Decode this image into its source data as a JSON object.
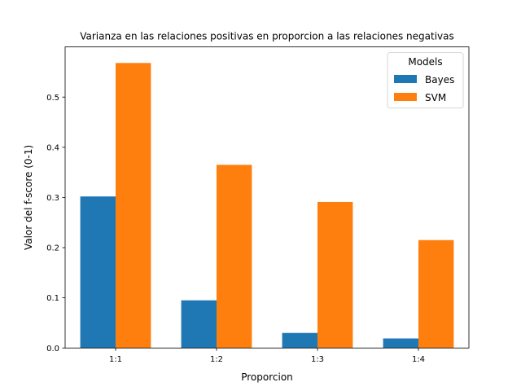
{
  "chart_data": {
    "type": "bar",
    "title": "Varianza en las relaciones positivas en proporcion a las relaciones negativas",
    "xlabel": "Proporcion",
    "ylabel": "Valor del f-score (0-1)",
    "categories": [
      "1:1",
      "1:2",
      "1:3",
      "1:4"
    ],
    "series": [
      {
        "name": "Bayes",
        "color": "#1f77b4",
        "values": [
          0.302,
          0.095,
          0.03,
          0.019
        ]
      },
      {
        "name": "SVM",
        "color": "#ff7f0e",
        "values": [
          0.568,
          0.365,
          0.291,
          0.215
        ]
      }
    ],
    "ylim": [
      0,
      0.6
    ],
    "yticks": [
      0.0,
      0.1,
      0.2,
      0.3,
      0.4,
      0.5
    ],
    "ytick_labels": [
      "0.0",
      "0.1",
      "0.2",
      "0.3",
      "0.4",
      "0.5"
    ],
    "grid": false,
    "legend": {
      "title": "Models",
      "placement": "top-right"
    }
  }
}
